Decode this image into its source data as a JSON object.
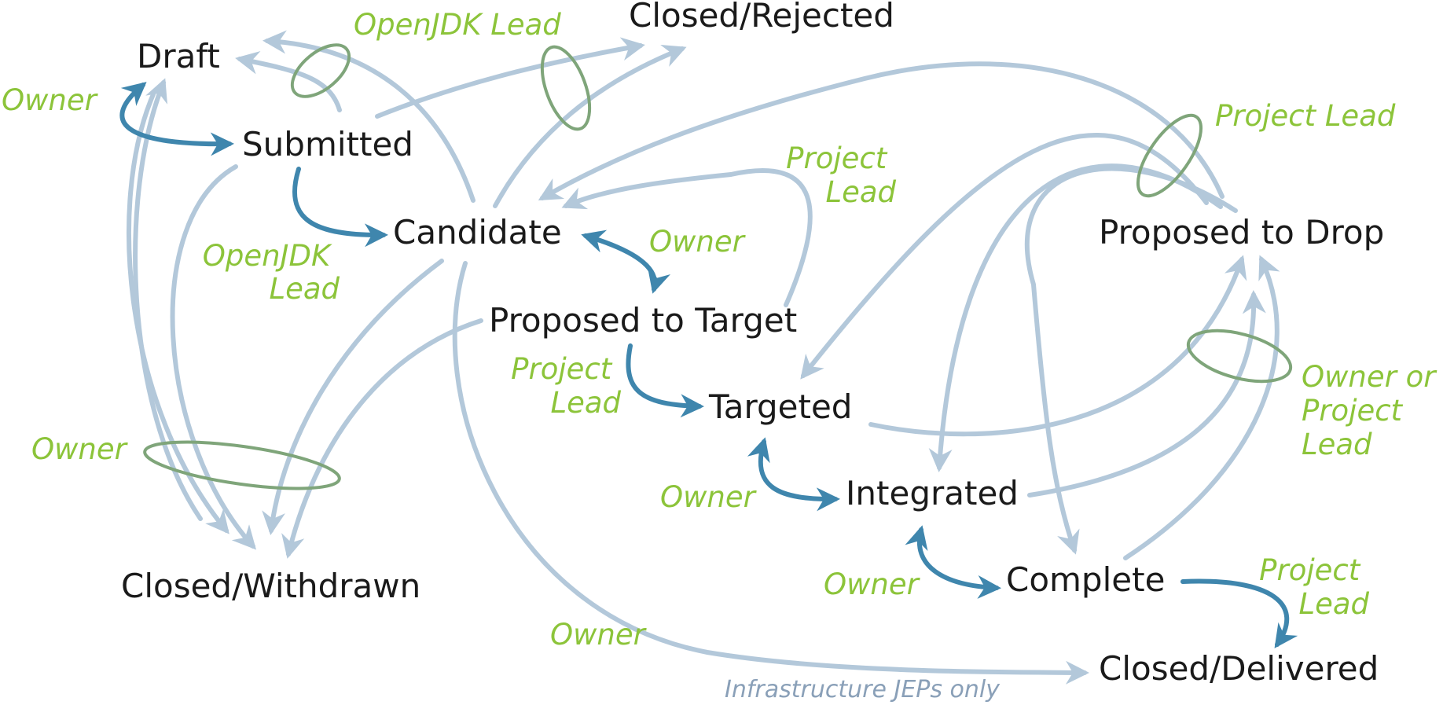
{
  "colors": {
    "state_text": "#1a1a1a",
    "role_text": "#8cc43a",
    "note_text": "#8aa0b8",
    "light_edge": "#b3c8da",
    "dark_edge": "#3f86ad",
    "group_ring": "#7fa57a"
  },
  "states": {
    "draft": "Draft",
    "submitted": "Submitted",
    "candidate": "Candidate",
    "proposed_to_target": "Proposed to Target",
    "targeted": "Targeted",
    "integrated": "Integrated",
    "complete": "Complete",
    "closed_rejected": "Closed/Rejected",
    "closed_withdrawn": "Closed/Withdrawn",
    "closed_delivered": "Closed/Delivered",
    "proposed_to_drop": "Proposed to Drop"
  },
  "roles": {
    "owner_draft": "Owner",
    "openjdk_lead_top": "OpenJDK Lead",
    "openjdk_lead_candidate": [
      "OpenJDK",
      "Lead"
    ],
    "owner_candidate": "Owner",
    "project_lead_ptt": [
      "Project",
      "Lead"
    ],
    "project_lead_targeted": [
      "Project",
      "Lead"
    ],
    "project_lead_drop": "Project Lead",
    "owner_or_project_lead": [
      "Owner or",
      "Project",
      "Lead"
    ],
    "owner_withdrawn": "Owner",
    "owner_integrated": "Owner",
    "owner_complete": "Owner",
    "owner_delivered": "Owner",
    "project_lead_delivered": [
      "Project",
      "Lead"
    ]
  },
  "notes": {
    "infrastructure": "Infrastructure JEPs only"
  }
}
